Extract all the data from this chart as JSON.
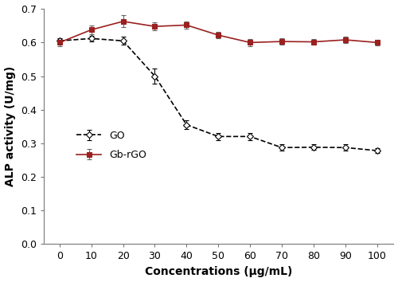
{
  "x": [
    0,
    10,
    20,
    30,
    40,
    50,
    60,
    70,
    80,
    90,
    100
  ],
  "go_y": [
    0.605,
    0.612,
    0.605,
    0.5,
    0.355,
    0.32,
    0.32,
    0.287,
    0.288,
    0.287,
    0.278
  ],
  "go_err": [
    0.008,
    0.008,
    0.012,
    0.022,
    0.013,
    0.01,
    0.01,
    0.01,
    0.008,
    0.01,
    0.007
  ],
  "gbrgo_y": [
    0.6,
    0.638,
    0.663,
    0.648,
    0.652,
    0.622,
    0.6,
    0.603,
    0.602,
    0.608,
    0.6
  ],
  "gbrgo_err": [
    0.01,
    0.013,
    0.018,
    0.012,
    0.01,
    0.01,
    0.01,
    0.01,
    0.008,
    0.01,
    0.008
  ],
  "go_color": "#000000",
  "gbrgo_color": "#9B2020",
  "go_label": "GO",
  "gbrgo_label": "Gb-rGO",
  "xlabel": "Concentrations (μg/mL)",
  "ylabel": "ALP activity (U/mg)",
  "ylim": [
    0,
    0.7
  ],
  "yticks": [
    0,
    0.1,
    0.2,
    0.3,
    0.4,
    0.5,
    0.6,
    0.7
  ],
  "xticks": [
    0,
    10,
    20,
    30,
    40,
    50,
    60,
    70,
    80,
    90,
    100
  ],
  "legend_loc": "center left",
  "figsize": [
    5.0,
    3.54
  ],
  "dpi": 100
}
